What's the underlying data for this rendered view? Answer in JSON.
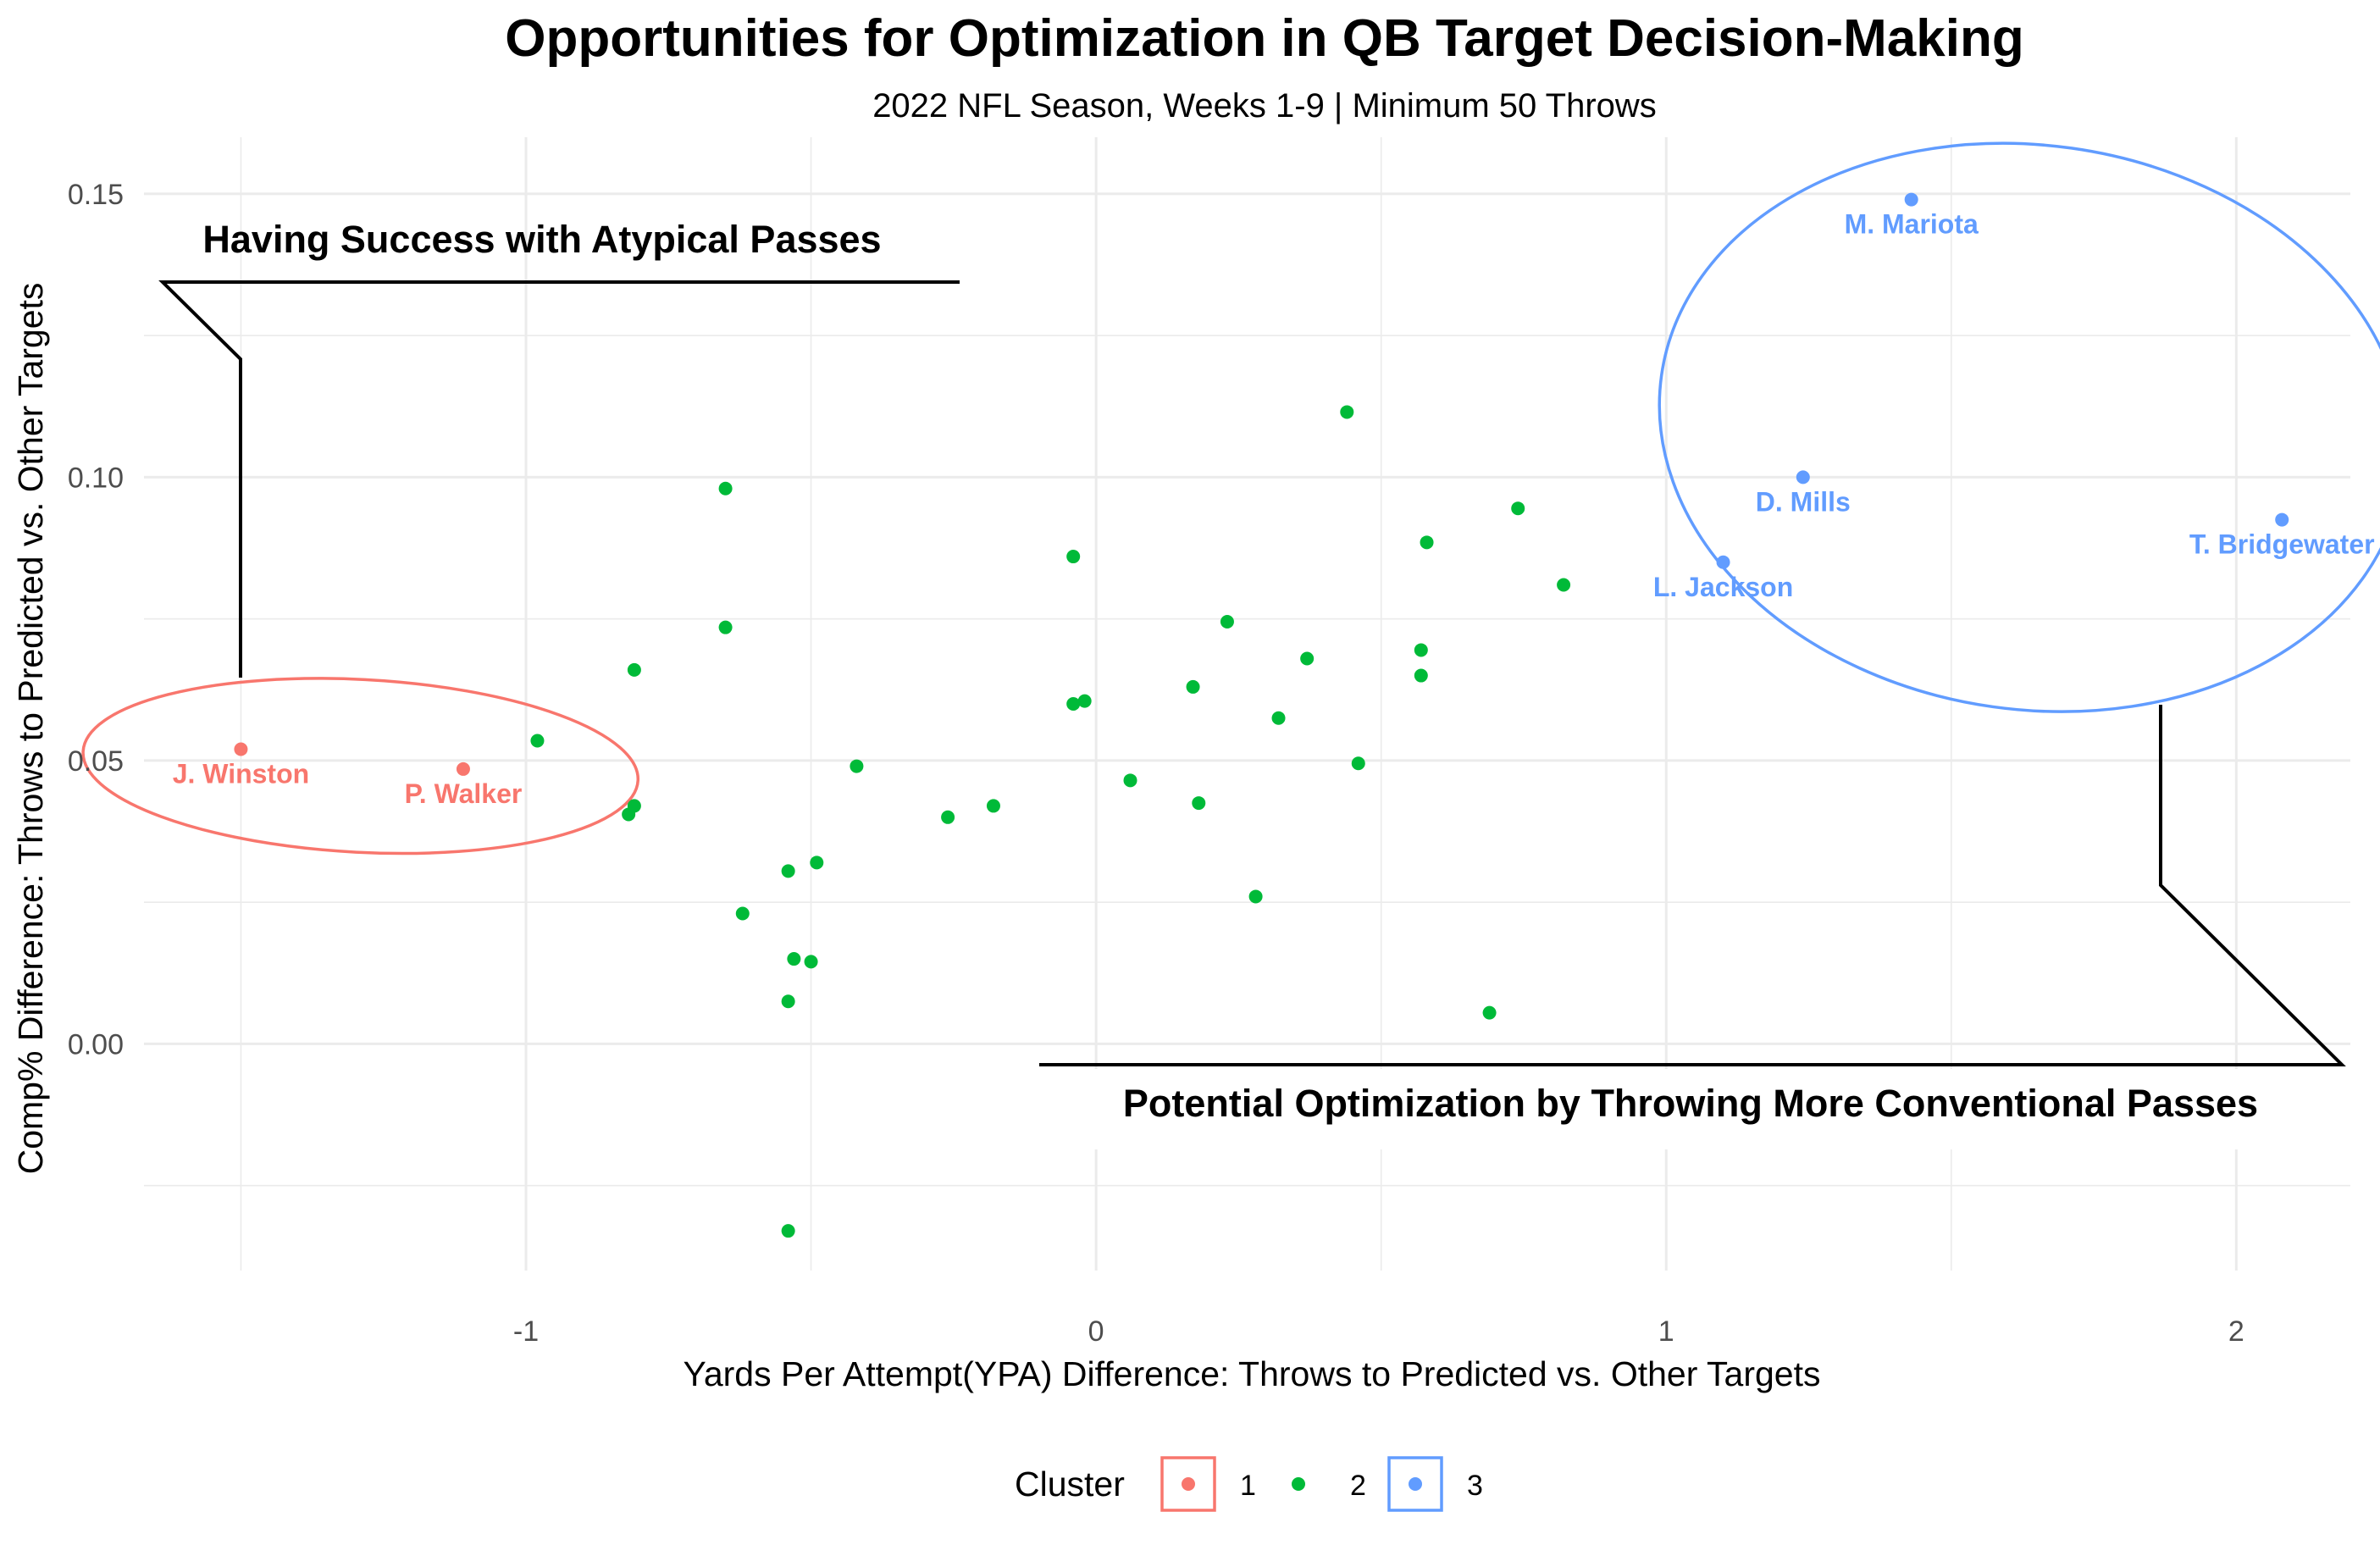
{
  "chart_data": {
    "type": "scatter",
    "title": "Opportunities for Optimization in QB Target Decision-Making",
    "subtitle": "2022 NFL Season, Weeks 1-9 | Minimum 50 Throws",
    "xlabel": "Yards Per Attempt(YPA) Difference: Throws to Predicted vs. Other Targets",
    "ylabel": "Comp% Difference: Throws to Predicted vs. Other Targets",
    "xlim": [
      -1.67,
      2.2
    ],
    "ylim": [
      -0.04,
      0.16
    ],
    "x_ticks": [
      -1,
      0,
      1,
      2
    ],
    "x_tick_labels": [
      "-1",
      "0",
      "1",
      "2"
    ],
    "y_ticks": [
      0.0,
      0.05,
      0.1,
      0.15
    ],
    "y_tick_labels": [
      "0.00",
      "0.05",
      "0.10",
      "0.15"
    ],
    "grid": true,
    "legend": {
      "title": "Cluster",
      "placement": "bottom",
      "entries": [
        "1",
        "2",
        "3"
      ]
    },
    "colors": {
      "1": "#F8766D",
      "2": "#00BA38",
      "3": "#619CFF"
    },
    "series": [
      {
        "name": "1",
        "points": [
          {
            "x": -1.5,
            "y": 0.052,
            "label": "J. Winston"
          },
          {
            "x": -1.11,
            "y": 0.0485,
            "label": "P. Walker"
          }
        ]
      },
      {
        "name": "2",
        "points": [
          {
            "x": -0.98,
            "y": 0.0535
          },
          {
            "x": -0.81,
            "y": 0.066
          },
          {
            "x": -0.81,
            "y": 0.042
          },
          {
            "x": -0.82,
            "y": 0.0405
          },
          {
            "x": -0.65,
            "y": 0.098
          },
          {
            "x": -0.65,
            "y": 0.0735
          },
          {
            "x": -0.62,
            "y": 0.023
          },
          {
            "x": -0.54,
            "y": 0.0305
          },
          {
            "x": -0.53,
            "y": 0.015
          },
          {
            "x": -0.54,
            "y": 0.0075
          },
          {
            "x": -0.54,
            "y": -0.033
          },
          {
            "x": -0.49,
            "y": 0.032
          },
          {
            "x": -0.5,
            "y": 0.0145
          },
          {
            "x": -0.42,
            "y": 0.049
          },
          {
            "x": -0.26,
            "y": 0.04
          },
          {
            "x": -0.18,
            "y": 0.042
          },
          {
            "x": -0.04,
            "y": 0.086
          },
          {
            "x": -0.04,
            "y": 0.06
          },
          {
            "x": -0.02,
            "y": 0.0605
          },
          {
            "x": 0.06,
            "y": 0.0465
          },
          {
            "x": 0.17,
            "y": 0.063
          },
          {
            "x": 0.18,
            "y": 0.0425
          },
          {
            "x": 0.23,
            "y": 0.0745
          },
          {
            "x": 0.28,
            "y": 0.026
          },
          {
            "x": 0.32,
            "y": 0.0575
          },
          {
            "x": 0.37,
            "y": 0.068
          },
          {
            "x": 0.44,
            "y": 0.1115
          },
          {
            "x": 0.46,
            "y": 0.0495
          },
          {
            "x": 0.57,
            "y": 0.0695
          },
          {
            "x": 0.57,
            "y": 0.065
          },
          {
            "x": 0.58,
            "y": 0.0885
          },
          {
            "x": 0.69,
            "y": 0.0055
          },
          {
            "x": 0.74,
            "y": 0.0945
          },
          {
            "x": 0.82,
            "y": 0.081
          }
        ]
      },
      {
        "name": "3",
        "points": [
          {
            "x": 1.43,
            "y": 0.149,
            "label": "M. Mariota"
          },
          {
            "x": 1.24,
            "y": 0.1,
            "label": "D. Mills"
          },
          {
            "x": 2.08,
            "y": 0.0925,
            "label": "T. Bridgewater"
          },
          {
            "x": 1.1,
            "y": 0.085,
            "label": "L. Jackson"
          }
        ]
      }
    ],
    "annotations": [
      {
        "text": "Having Success with Atypical Passes",
        "target": "cluster 1"
      },
      {
        "text": "Potential Optimization by Throwing More Conventional Passes",
        "target": "cluster 3"
      }
    ]
  }
}
